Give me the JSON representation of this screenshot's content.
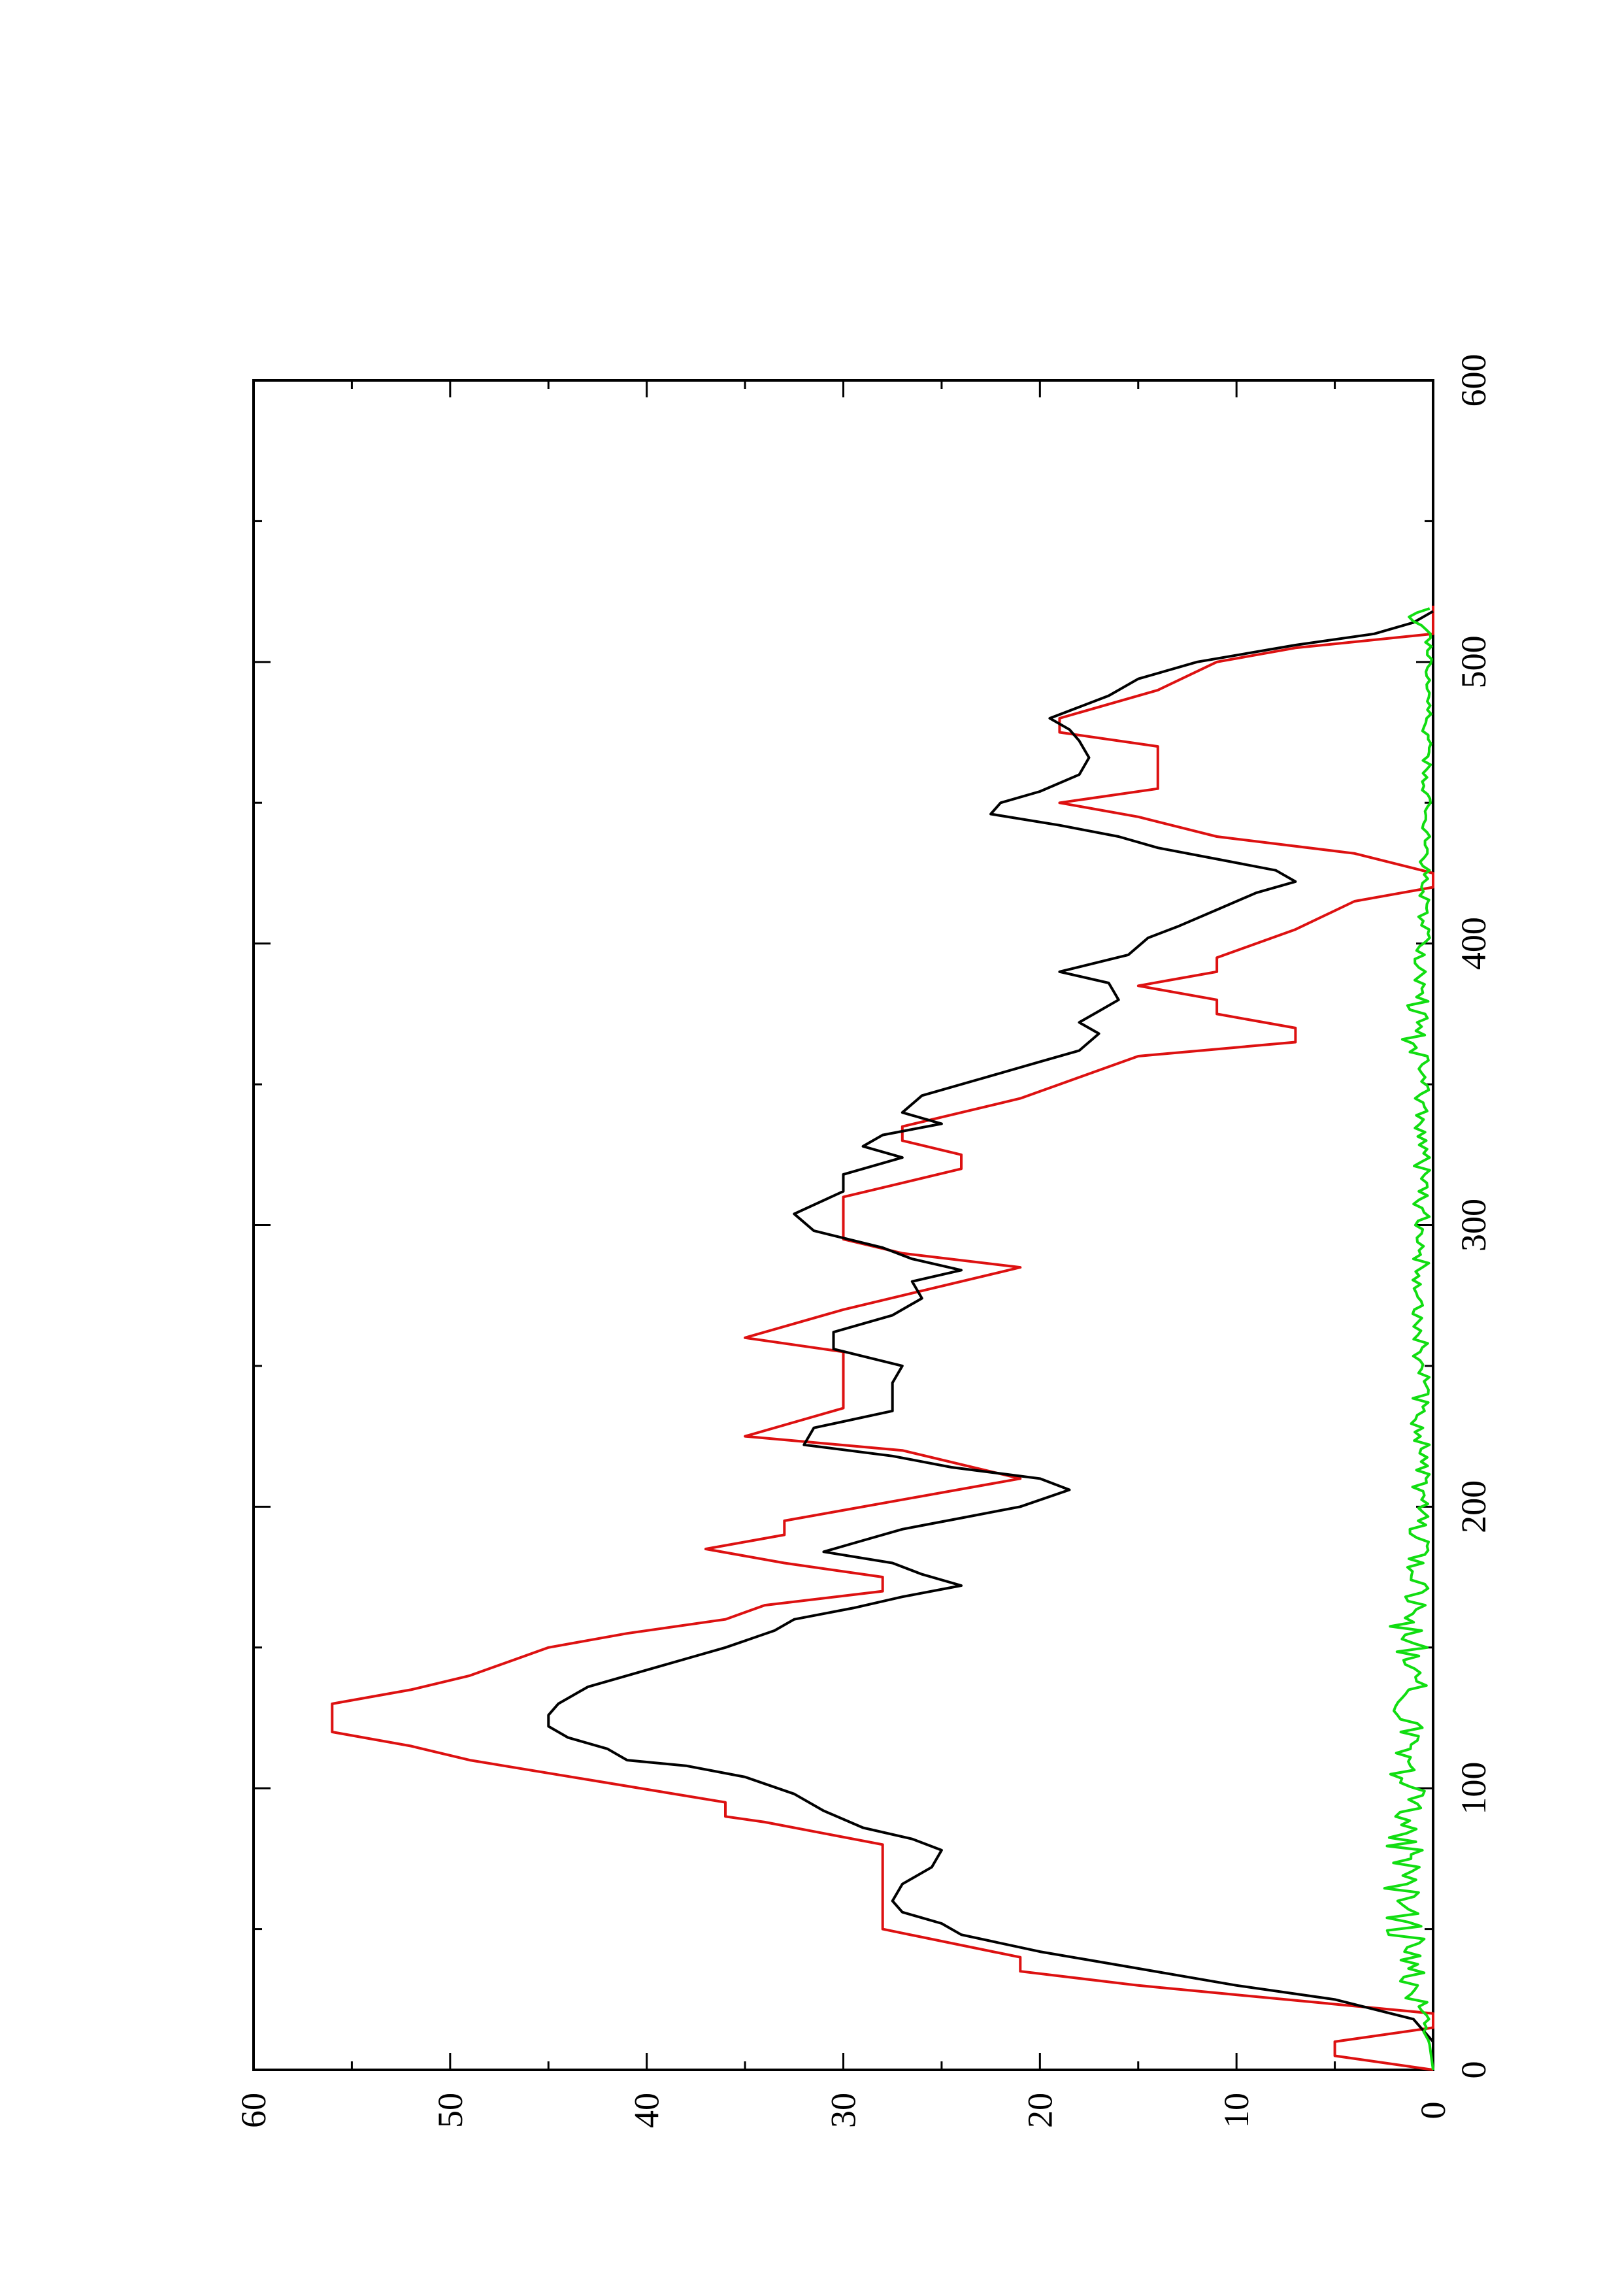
{
  "chart_data": {
    "type": "line",
    "orientation": "rotated-90-ccw",
    "xlim": [
      0,
      600
    ],
    "ylim": [
      0,
      60
    ],
    "x_ticks": [
      0,
      100,
      200,
      300,
      400,
      500,
      600
    ],
    "y_ticks": [
      0,
      10,
      20,
      30,
      40,
      50,
      60
    ],
    "x_tick_labels": [
      "0",
      "100",
      "200",
      "300",
      "400",
      "500",
      "600"
    ],
    "y_tick_labels": [
      "0",
      "10",
      "20",
      "30",
      "40",
      "50",
      "60"
    ],
    "grid": false,
    "legend": "none",
    "series": [
      {
        "color": "#dd1111",
        "step": true,
        "points": [
          [
            0,
            0
          ],
          [
            5,
            5
          ],
          [
            10,
            5
          ],
          [
            15,
            0
          ],
          [
            20,
            0
          ],
          [
            30,
            15
          ],
          [
            35,
            21
          ],
          [
            40,
            21
          ],
          [
            50,
            28
          ],
          [
            80,
            28
          ],
          [
            88,
            34
          ],
          [
            90,
            36
          ],
          [
            95,
            36
          ],
          [
            110,
            49
          ],
          [
            115,
            52
          ],
          [
            120,
            56
          ],
          [
            130,
            56
          ],
          [
            135,
            52
          ],
          [
            140,
            49
          ],
          [
            150,
            45
          ],
          [
            155,
            41
          ],
          [
            160,
            36
          ],
          [
            165,
            34
          ],
          [
            170,
            28
          ],
          [
            175,
            28
          ],
          [
            180,
            33
          ],
          [
            185,
            37
          ],
          [
            190,
            33
          ],
          [
            195,
            33
          ],
          [
            210,
            21
          ],
          [
            220,
            27
          ],
          [
            225,
            35
          ],
          [
            235,
            30
          ],
          [
            255,
            30
          ],
          [
            260,
            35
          ],
          [
            270,
            30
          ],
          [
            275,
            27
          ],
          [
            285,
            21
          ],
          [
            290,
            27
          ],
          [
            295,
            30
          ],
          [
            310,
            30
          ],
          [
            315,
            27
          ],
          [
            320,
            24
          ],
          [
            325,
            24
          ],
          [
            330,
            27
          ],
          [
            335,
            27
          ],
          [
            340,
            24
          ],
          [
            345,
            21
          ],
          [
            350,
            19
          ],
          [
            360,
            15
          ],
          [
            365,
            7
          ],
          [
            370,
            7
          ],
          [
            375,
            11
          ],
          [
            380,
            11
          ],
          [
            385,
            15
          ],
          [
            390,
            11
          ],
          [
            395,
            11
          ],
          [
            405,
            7
          ],
          [
            415,
            4
          ],
          [
            420,
            0
          ],
          [
            425,
            0
          ],
          [
            432,
            4
          ],
          [
            438,
            11
          ],
          [
            445,
            15
          ],
          [
            450,
            19
          ],
          [
            455,
            14
          ],
          [
            470,
            14
          ],
          [
            475,
            19
          ],
          [
            480,
            19
          ],
          [
            490,
            14
          ],
          [
            500,
            11
          ],
          [
            505,
            7
          ],
          [
            510,
            0
          ],
          [
            520,
            0
          ]
        ]
      },
      {
        "color": "#000000",
        "step": false,
        "points": [
          [
            0,
            0
          ],
          [
            10,
            0
          ],
          [
            18,
            1
          ],
          [
            25,
            5
          ],
          [
            30,
            10
          ],
          [
            36,
            15
          ],
          [
            42,
            20
          ],
          [
            48,
            24
          ],
          [
            52,
            25
          ],
          [
            56,
            27
          ],
          [
            60,
            27.5
          ],
          [
            66,
            27
          ],
          [
            72,
            25.5
          ],
          [
            78,
            25
          ],
          [
            82,
            26.5
          ],
          [
            86,
            29
          ],
          [
            92,
            31
          ],
          [
            98,
            32.5
          ],
          [
            104,
            35
          ],
          [
            108,
            38
          ],
          [
            110,
            41
          ],
          [
            114,
            42
          ],
          [
            118,
            44
          ],
          [
            122,
            45
          ],
          [
            126,
            45
          ],
          [
            130,
            44.5
          ],
          [
            136,
            43
          ],
          [
            142,
            40
          ],
          [
            146,
            38
          ],
          [
            150,
            36
          ],
          [
            156,
            33.5
          ],
          [
            160,
            32.5
          ],
          [
            164,
            29.5
          ],
          [
            168,
            27
          ],
          [
            172,
            24
          ],
          [
            176,
            26
          ],
          [
            180,
            27.5
          ],
          [
            184,
            31
          ],
          [
            188,
            29
          ],
          [
            192,
            27
          ],
          [
            196,
            24
          ],
          [
            200,
            21
          ],
          [
            206,
            18.5
          ],
          [
            210,
            20
          ],
          [
            214,
            24.5
          ],
          [
            218,
            27.5
          ],
          [
            222,
            32
          ],
          [
            228,
            31.5
          ],
          [
            234,
            27.5
          ],
          [
            244,
            27.5
          ],
          [
            250,
            27
          ],
          [
            256,
            30.5
          ],
          [
            262,
            30.5
          ],
          [
            268,
            27.5
          ],
          [
            274,
            26
          ],
          [
            280,
            26.5
          ],
          [
            284,
            24
          ],
          [
            288,
            26.5
          ],
          [
            292,
            28
          ],
          [
            298,
            31.5
          ],
          [
            304,
            32.5
          ],
          [
            312,
            30
          ],
          [
            318,
            30
          ],
          [
            324,
            27
          ],
          [
            328,
            29
          ],
          [
            332,
            28
          ],
          [
            336,
            25
          ],
          [
            340,
            27
          ],
          [
            346,
            26
          ],
          [
            352,
            23
          ],
          [
            358,
            20
          ],
          [
            362,
            18
          ],
          [
            368,
            17
          ],
          [
            372,
            18
          ],
          [
            376,
            17
          ],
          [
            380,
            16
          ],
          [
            386,
            16.5
          ],
          [
            390,
            19
          ],
          [
            396,
            15.5
          ],
          [
            402,
            14.5
          ],
          [
            406,
            13
          ],
          [
            412,
            11
          ],
          [
            418,
            9
          ],
          [
            422,
            7
          ],
          [
            426,
            8
          ],
          [
            430,
            11
          ],
          [
            434,
            14
          ],
          [
            438,
            16
          ],
          [
            442,
            19
          ],
          [
            446,
            22.5
          ],
          [
            450,
            22
          ],
          [
            454,
            20
          ],
          [
            460,
            18
          ],
          [
            466,
            17.5
          ],
          [
            472,
            18
          ],
          [
            476,
            18.5
          ],
          [
            480,
            19.5
          ],
          [
            484,
            18
          ],
          [
            488,
            16.5
          ],
          [
            494,
            15
          ],
          [
            500,
            12
          ],
          [
            506,
            7
          ],
          [
            510,
            3
          ],
          [
            514,
            1
          ],
          [
            518,
            0
          ]
        ]
      },
      {
        "color": "#11dd11",
        "step": false,
        "noise_band": [
          0,
          2.2
        ],
        "noise_band_tail": [
          0,
          1.4
        ],
        "x_range": [
          0,
          520
        ],
        "points": [
          [
            0,
            0
          ],
          [
            10,
            0.2
          ],
          [
            20,
            1
          ],
          [
            30,
            2
          ],
          [
            40,
            2.3
          ],
          [
            60,
            2.5
          ],
          [
            80,
            2.5
          ],
          [
            100,
            2.3
          ],
          [
            120,
            2.1
          ],
          [
            150,
            1.9
          ],
          [
            155,
            2.8
          ],
          [
            160,
            1.6
          ],
          [
            200,
            1.3
          ],
          [
            250,
            1.1
          ],
          [
            300,
            1.0
          ],
          [
            350,
            1.0
          ],
          [
            368,
            1.8
          ],
          [
            400,
            0.8
          ],
          [
            450,
            0.6
          ],
          [
            500,
            0.5
          ],
          [
            510,
            0.6
          ],
          [
            515,
            1.5
          ],
          [
            518,
            0.8
          ],
          [
            520,
            0.4
          ]
        ]
      }
    ]
  }
}
